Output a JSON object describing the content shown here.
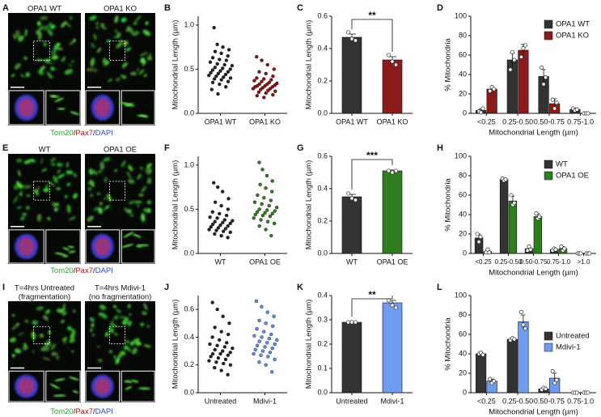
{
  "image_panels": [
    {
      "letter": "A",
      "labels": [
        [
          "OPA1 WT"
        ],
        [
          "OPA1 KO"
        ]
      ],
      "stain": [
        {
          "text": "Tom20",
          "color": "#2fa32f"
        },
        {
          "text": "/",
          "color": "#111111"
        },
        {
          "text": "Pax7",
          "color": "#a01818"
        },
        {
          "text": "/",
          "color": "#111111"
        },
        {
          "text": "DAPI",
          "color": "#2a46c8"
        }
      ]
    },
    {
      "letter": "E",
      "labels": [
        [
          "WT"
        ],
        [
          "OPA1 OE"
        ]
      ],
      "stain": [
        {
          "text": "Tom20",
          "color": "#2fa32f"
        },
        {
          "text": "/",
          "color": "#111111"
        },
        {
          "text": "Pax7",
          "color": "#a01818"
        },
        {
          "text": "/",
          "color": "#111111"
        },
        {
          "text": "DAPI",
          "color": "#2a46c8"
        }
      ]
    },
    {
      "letter": "I",
      "labels": [
        [
          "T=4hrs Untreated",
          "(fragmentation)"
        ],
        [
          "T=4hrs Mdivi-1",
          "(no fragmentation)"
        ]
      ],
      "stain": [
        {
          "text": "Tom20",
          "color": "#2fa32f"
        },
        {
          "text": "/",
          "color": "#111111"
        },
        {
          "text": "Pax7",
          "color": "#a01818"
        },
        {
          "text": "/",
          "color": "#111111"
        },
        {
          "text": "DAPI",
          "color": "#2a46c8"
        }
      ]
    }
  ],
  "chart_data": [
    {
      "type": "strip",
      "letter": "B",
      "ylabel": "Mitochondrial Length (µm)",
      "categories": [
        "OPA1 WT",
        "OPA1 KO"
      ],
      "colors": [
        "#222222",
        "#8b1010"
      ],
      "values": [
        [
          0.97,
          0.78,
          0.75,
          0.72,
          0.7,
          0.68,
          0.65,
          0.63,
          0.61,
          0.6,
          0.58,
          0.56,
          0.55,
          0.54,
          0.52,
          0.51,
          0.5,
          0.49,
          0.48,
          0.47,
          0.46,
          0.45,
          0.44,
          0.43,
          0.42,
          0.41,
          0.4,
          0.39,
          0.38,
          0.36,
          0.35,
          0.33,
          0.3,
          0.27,
          0.22
        ],
        [
          0.64,
          0.6,
          0.55,
          0.5,
          0.47,
          0.45,
          0.42,
          0.4,
          0.39,
          0.38,
          0.37,
          0.36,
          0.35,
          0.34,
          0.33,
          0.33,
          0.32,
          0.31,
          0.31,
          0.3,
          0.3,
          0.29,
          0.28,
          0.28,
          0.27,
          0.26,
          0.25,
          0.24,
          0.23,
          0.21,
          0.2,
          0.18
        ]
      ],
      "ylim": [
        0,
        1.1
      ],
      "yticks": [
        {
          "value": 0,
          "label": "0.0"
        },
        0.5,
        {
          "value": 1,
          "label": "1.0"
        }
      ]
    },
    {
      "type": "bar",
      "letter": "C",
      "ylabel": "Mitochondrial Length (µm)",
      "categories": [
        "OPA1 WT",
        "OPA1 KO"
      ],
      "colors": [
        "#333333",
        "#8b1a1a"
      ],
      "values": [
        0.47,
        0.33
      ],
      "errors": [
        0.02,
        0.02
      ],
      "points": [
        [
          0.5,
          0.46,
          0.45
        ],
        [
          0.36,
          0.32,
          0.3
        ]
      ],
      "significance": "**",
      "ylim": [
        0,
        0.6
      ],
      "yticks": [
        {
          "value": 0,
          "label": "0.0"
        },
        0.2,
        0.4,
        0.6
      ]
    },
    {
      "type": "bar",
      "letter": "D",
      "ylabel": "% Mitochondria",
      "xlabel": "Mitochondrial Length (µm)",
      "categories": [
        "<0.25",
        "0.25-0.50",
        "0.50-0.75",
        "0.75-1.0"
      ],
      "legend": "upper right",
      "series": [
        {
          "name": "OPA1 WT",
          "color": "#333333",
          "values": [
            3,
            55,
            38,
            4
          ],
          "errors": [
            1.5,
            7,
            7,
            1.5
          ],
          "points": [
            [
              2,
              1,
              5
            ],
            [
              45,
              63,
              55
            ],
            [
              47,
              30,
              37
            ],
            [
              5,
              3,
              4
            ]
          ]
        },
        {
          "name": "OPA1 KO",
          "color": "#8b1a1a",
          "values": [
            25,
            65,
            10,
            0
          ],
          "errors": [
            2,
            6,
            5,
            0
          ],
          "points": [
            [
              23,
              27,
              25
            ],
            [
              58,
              67,
              70
            ],
            [
              14,
              5,
              11
            ],
            [
              0,
              0,
              0
            ]
          ]
        }
      ],
      "ylim": [
        0,
        100
      ],
      "yticks": [
        0,
        20,
        40,
        60,
        80,
        100
      ]
    },
    {
      "type": "strip",
      "letter": "F",
      "ylabel": "Mitochondrial Length (µm)",
      "categories": [
        "WT",
        "OPA1 OE"
      ],
      "colors": [
        "#222222",
        "#2e7d1f"
      ],
      "values": [
        [
          0.8,
          0.75,
          0.7,
          0.62,
          0.58,
          0.54,
          0.5,
          0.47,
          0.45,
          0.43,
          0.41,
          0.4,
          0.38,
          0.37,
          0.36,
          0.35,
          0.34,
          0.33,
          0.32,
          0.31,
          0.3,
          0.29,
          0.28,
          0.27,
          0.26,
          0.25,
          0.24,
          0.22,
          0.2,
          0.18
        ],
        [
          1.03,
          0.95,
          0.88,
          0.82,
          0.78,
          0.74,
          0.7,
          0.66,
          0.63,
          0.6,
          0.58,
          0.56,
          0.54,
          0.52,
          0.5,
          0.49,
          0.48,
          0.47,
          0.46,
          0.45,
          0.44,
          0.43,
          0.42,
          0.4,
          0.38,
          0.36,
          0.34,
          0.31,
          0.27,
          0.2
        ]
      ],
      "ylim": [
        0,
        1.1
      ],
      "yticks": [
        {
          "value": 0,
          "label": "0.0"
        },
        0.5,
        {
          "value": 1,
          "label": "1.0"
        }
      ]
    },
    {
      "type": "bar",
      "letter": "G",
      "ylabel": "Mitochondrial Length (µm)",
      "categories": [
        "WT",
        "OPA1 OE"
      ],
      "colors": [
        "#333333",
        "#2e7d1f"
      ],
      "values": [
        0.35,
        0.51
      ],
      "errors": [
        0.015,
        0.005
      ],
      "points": [
        [
          0.37,
          0.34,
          0.33
        ],
        [
          0.51,
          0.5,
          0.51
        ]
      ],
      "significance": "***",
      "ylim": [
        0,
        0.6
      ],
      "yticks": [
        {
          "value": 0,
          "label": "0.0"
        },
        0.2,
        0.4,
        0.6
      ]
    },
    {
      "type": "bar",
      "letter": "H",
      "ylabel": "% Mitochondria",
      "xlabel": "Mitochondrial Length (µm)",
      "categories": [
        "<0.25",
        "0.25-0.50",
        "0.50-0.75",
        "0.75-1.0",
        ">1.0"
      ],
      "legend": "upper right",
      "series": [
        {
          "name": "WT",
          "color": "#333333",
          "values": [
            16,
            76,
            5,
            4,
            0
          ],
          "errors": [
            4,
            1.5,
            2,
            1.5,
            0
          ],
          "points": [
            [
              20,
              12,
              17
            ],
            [
              77,
              75,
              76
            ],
            [
              3,
              7,
              4
            ],
            [
              3,
              5,
              4
            ],
            [
              0,
              0,
              0
            ]
          ]
        },
        {
          "name": "OPA1 OE",
          "color": "#2e7d1f",
          "values": [
            2,
            54,
            38,
            5,
            0
          ],
          "errors": [
            1.5,
            5,
            3,
            2,
            0
          ],
          "points": [
            [
              1,
              4,
              1
            ],
            [
              60,
              50,
              52
            ],
            [
              41,
              36,
              38
            ],
            [
              7,
              3,
              5
            ],
            [
              0,
              0,
              0
            ]
          ]
        }
      ],
      "ylim": [
        0,
        100
      ],
      "yticks": [
        0,
        20,
        40,
        60,
        80,
        100
      ]
    },
    {
      "type": "strip",
      "letter": "J",
      "ylabel": "Mitochondrial Length (µm)",
      "categories": [
        "Untreated",
        "Mdivi-1"
      ],
      "colors": [
        "#222222",
        "#5b8def"
      ],
      "values": [
        [
          0.65,
          0.6,
          0.55,
          0.5,
          0.47,
          0.44,
          0.42,
          0.4,
          0.38,
          0.36,
          0.35,
          0.34,
          0.33,
          0.32,
          0.31,
          0.3,
          0.29,
          0.28,
          0.28,
          0.27,
          0.26,
          0.25,
          0.24,
          0.23,
          0.22,
          0.21,
          0.2,
          0.18,
          0.16,
          0.13
        ],
        [
          0.66,
          0.62,
          0.58,
          0.55,
          0.52,
          0.5,
          0.48,
          0.46,
          0.44,
          0.42,
          0.41,
          0.4,
          0.39,
          0.38,
          0.37,
          0.36,
          0.35,
          0.34,
          0.33,
          0.32,
          0.31,
          0.3,
          0.29,
          0.28,
          0.27,
          0.26,
          0.24,
          0.22,
          0.2,
          0.15
        ]
      ],
      "ylim": [
        0,
        0.7
      ],
      "yticks": [
        {
          "value": 0,
          "label": "0.0"
        },
        0.2,
        0.4,
        0.6
      ]
    },
    {
      "type": "bar",
      "letter": "K",
      "ylabel": "Mitochondrial Length (µm)",
      "categories": [
        "Untreated",
        "Mdivi-1"
      ],
      "colors": [
        "#333333",
        "#6f9cf0"
      ],
      "values": [
        0.29,
        0.37
      ],
      "errors": [
        0.003,
        0.01
      ],
      "points": [
        [
          0.29,
          0.29,
          0.29
        ],
        [
          0.38,
          0.36,
          0.35
        ]
      ],
      "significance": "**",
      "ylim": [
        0,
        0.4
      ],
      "yticks": [
        {
          "value": 0,
          "label": "0.0"
        },
        0.1,
        0.2,
        0.3,
        0.4
      ]
    },
    {
      "type": "bar",
      "letter": "L",
      "ylabel": "% Mitochondria",
      "xlabel": "Mitochondrial Length (µm)",
      "categories": [
        "<0.25",
        "0.25-0.50",
        "0.50-0.75",
        "0.75-1.0"
      ],
      "legend": "center right",
      "series": [
        {
          "name": "Untreated",
          "color": "#333333",
          "values": [
            40,
            55,
            4,
            0
          ],
          "errors": [
            1,
            1.5,
            1.5,
            0
          ],
          "points": [
            [
              40,
              41,
              39
            ],
            [
              54,
              56,
              55
            ],
            [
              3,
              5,
              4
            ],
            [
              0,
              0,
              0
            ]
          ]
        },
        {
          "name": "Mdivi-1",
          "color": "#6f9cf0",
          "values": [
            12,
            73,
            15,
            0
          ],
          "errors": [
            2,
            7,
            5,
            0
          ],
          "points": [
            [
              14,
              10,
              12
            ],
            [
              83,
              70,
              66
            ],
            [
              22,
              10,
              13
            ],
            [
              0,
              0,
              0
            ]
          ]
        }
      ],
      "ylim": [
        0,
        100
      ],
      "yticks": [
        0,
        20,
        40,
        60,
        80,
        100
      ]
    }
  ]
}
